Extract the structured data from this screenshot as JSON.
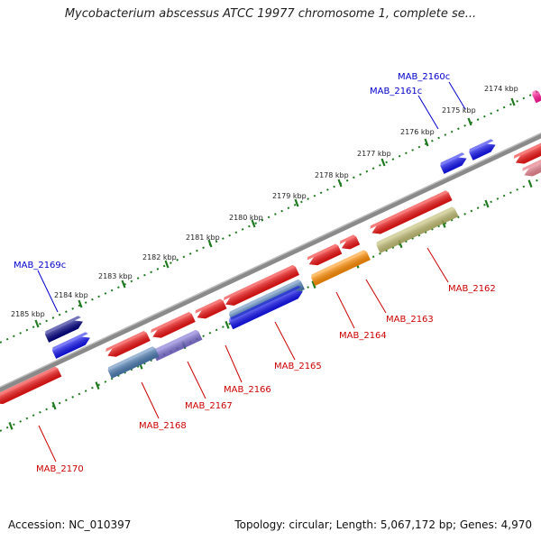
{
  "title": "Mycobacterium abscessus ATCC 19977 chromosome 1, complete se...",
  "footer": {
    "accession": "Accession: NC_010397",
    "summary": "Topology: circular; Length: 5,067,172 bp; Genes: 4,970"
  },
  "colors": {
    "backbone": "#8a8a8a",
    "tick": "#1f7a1f",
    "forward_label": "#0000cc",
    "reverse_label": "#cc0000",
    "red": "#ee1111",
    "blue": "#1111ee",
    "navy": "#000080",
    "orange": "#ff8c00",
    "olive": "#b5b05a",
    "steel": "#4a7ab0",
    "purple": "#6a5acd",
    "pink": "#ff1493",
    "lightred": "#e05060"
  },
  "kbp_ticks": [
    {
      "label": "2174 kbp"
    },
    {
      "label": "2175 kbp"
    },
    {
      "label": "2176 kbp"
    },
    {
      "label": "2177 kbp"
    },
    {
      "label": "2178 kbp"
    },
    {
      "label": "2179 kbp"
    },
    {
      "label": "2180 kbp"
    },
    {
      "label": "2181 kbp"
    },
    {
      "label": "2182 kbp"
    },
    {
      "label": "2183 kbp"
    },
    {
      "label": "2184 kbp"
    },
    {
      "label": "2185 kbp"
    }
  ],
  "genes": [
    {
      "name": "MAB_2160c",
      "strand": "forward",
      "color": "blue"
    },
    {
      "name": "MAB_2161c",
      "strand": "forward",
      "color": "blue"
    },
    {
      "name": "MAB_2162",
      "strand": "reverse",
      "color": "red"
    },
    {
      "name": "MAB_2163",
      "strand": "reverse",
      "color": "red"
    },
    {
      "name": "MAB_2164",
      "strand": "reverse",
      "color": "red"
    },
    {
      "name": "MAB_2165",
      "strand": "reverse",
      "color": "red"
    },
    {
      "name": "MAB_2166",
      "strand": "reverse",
      "color": "red"
    },
    {
      "name": "MAB_2167",
      "strand": "reverse",
      "color": "red"
    },
    {
      "name": "MAB_2168",
      "strand": "reverse",
      "color": "red"
    },
    {
      "name": "MAB_2169c",
      "strand": "forward",
      "color": "navy"
    },
    {
      "name": "MAB_2170",
      "strand": "reverse",
      "color": "red"
    }
  ]
}
